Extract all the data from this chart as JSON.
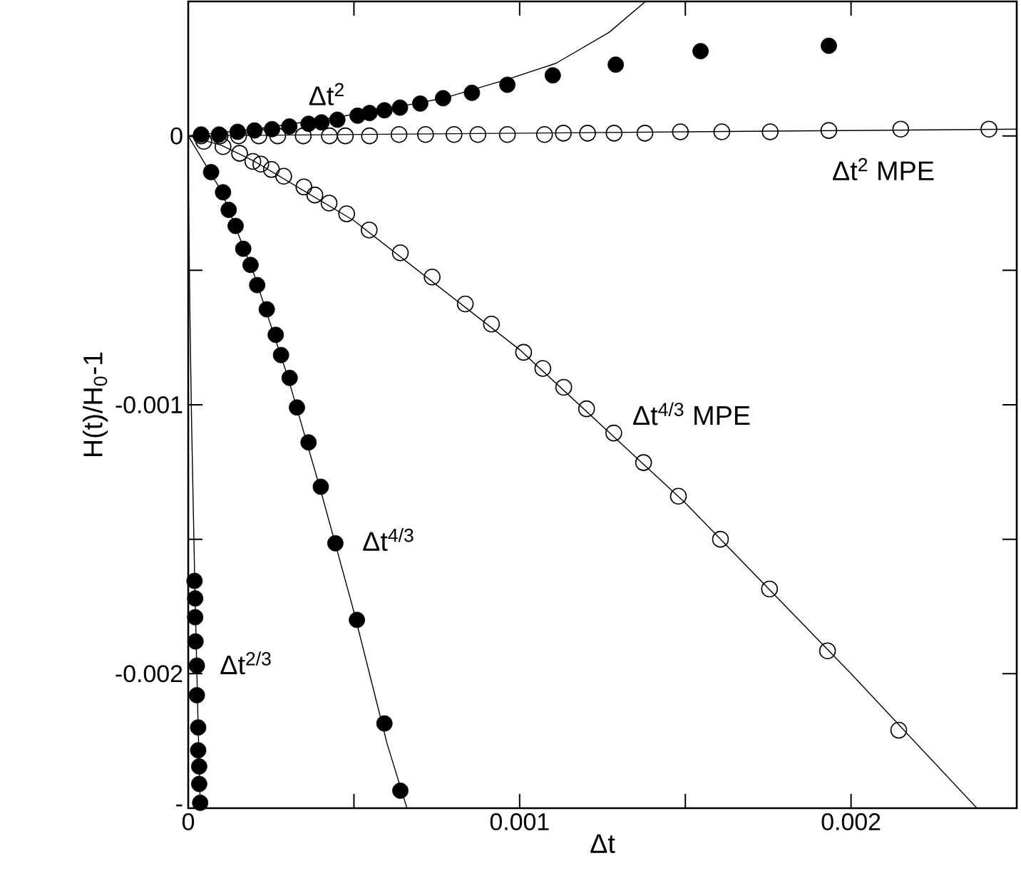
{
  "chart_data": {
    "type": "scatter",
    "xlabel": "Δt",
    "ylabel": "H(t)/H$_{0}$-1",
    "xlim": [
      0,
      0.0025
    ],
    "ylim": [
      -0.0025,
      0.0005
    ],
    "xticks": [
      0,
      {
        "value": 0.0005,
        "label": null
      },
      0.001,
      {
        "value": 0.0015,
        "label": null
      },
      0.002
    ],
    "yticks": [
      0,
      {
        "value": -0.0005,
        "label": null
      },
      -0.001,
      {
        "value": -0.0015,
        "label": null
      },
      -0.002,
      {
        "value": -0.0025,
        "label": "-"
      }
    ],
    "series": [
      {
        "marker": "circle",
        "color": "#000000",
        "x": [
          3.9e-05,
          9.3e-05,
          0.000149,
          0.0002,
          0.000253,
          0.000305,
          0.000363,
          0.000402,
          0.00045,
          0.000511,
          0.000547,
          0.000592,
          0.000639,
          0.0007,
          0.000769,
          0.000856,
          0.000963,
          0.0011,
          0.00129,
          0.001546,
          0.001933
        ],
        "values": [
          5e-06,
          5e-06,
          1.5e-05,
          2e-05,
          2.5e-05,
          3.5e-05,
          4.5e-05,
          5e-05,
          6e-05,
          7.5e-05,
          8.5e-05,
          9.5e-05,
          0.000105,
          0.00012,
          0.00014,
          0.00016,
          0.00019,
          0.000225,
          0.000265,
          0.000315,
          0.000335
        ]
      },
      {
        "type": "line",
        "marker": "none",
        "color": "#000000",
        "x": [
          0,
          0.0002,
          0.0004,
          0.0006,
          0.00077,
          0.000963,
          0.00111,
          0.00127,
          0.00138
        ],
        "values": [
          0,
          2.5e-05,
          6e-05,
          0.0001,
          0.00014,
          0.00021,
          0.00027,
          0.000385,
          0.0005
        ]
      },
      {
        "marker": "circle_open",
        "color": "#000000",
        "x": [
          3.9e-05,
          9.6e-05,
          0.000152,
          0.000213,
          0.00027,
          0.000347,
          0.000426,
          0.000474,
          0.000547,
          0.000636,
          0.000716,
          0.000802,
          0.000874,
          0.000963,
          0.001075,
          0.001132,
          0.001205,
          0.001285,
          0.001378,
          0.001485,
          0.00161,
          0.001756,
          0.001933,
          0.00215,
          0.002416
        ],
        "values": [
          0,
          0,
          0,
          0,
          0,
          0,
          0,
          0,
          0,
          5e-06,
          5e-06,
          5e-06,
          5e-06,
          5e-06,
          5e-06,
          1e-05,
          1e-05,
          1e-05,
          1e-05,
          1.5e-05,
          1.5e-05,
          1.5e-05,
          2e-05,
          2.5e-05,
          2.5e-05
        ]
      },
      {
        "type": "line",
        "marker": "none",
        "color": "#000000",
        "x": [
          0,
          0.0025
        ],
        "values": [
          0,
          2.5e-05
        ]
      },
      {
        "marker": "circle_open",
        "color": "#000000",
        "x": [
          4.7e-05,
          0.000105,
          0.000155,
          0.000195,
          0.000219,
          0.000251,
          0.000288,
          0.000349,
          0.000382,
          0.000425,
          0.000478,
          0.000546,
          0.00064,
          0.000736,
          0.000836,
          0.000915,
          0.001012,
          0.00107,
          0.001133,
          0.001202,
          0.001284,
          0.001374,
          0.001479,
          0.001606,
          0.001754,
          0.001929,
          0.002144
        ],
        "values": [
          -2e-05,
          -4e-05,
          -6.5e-05,
          -9.5e-05,
          -0.000105,
          -0.000125,
          -0.00015,
          -0.00019,
          -0.00022,
          -0.00025,
          -0.00029,
          -0.00035,
          -0.000435,
          -0.000525,
          -0.000625,
          -0.0007,
          -0.000805,
          -0.000865,
          -0.000935,
          -0.001015,
          -0.001105,
          -0.001215,
          -0.00134,
          -0.0015,
          -0.001685,
          -0.001915,
          -0.00221
        ]
      },
      {
        "type": "line",
        "marker": "none",
        "color": "#000000",
        "x": [
          0,
          0.0001,
          0.0002,
          0.0005,
          0.001,
          0.0015,
          0.002,
          0.00238
        ],
        "values": [
          0,
          -3.5e-05,
          -9.5e-05,
          -0.000315,
          -0.000795,
          -0.001365,
          -0.002,
          -0.0025
        ]
      },
      {
        "marker": "circle",
        "color": "#000000",
        "x": [
          6.9e-05,
          0.000105,
          0.000122,
          0.000143,
          0.000166,
          0.000188,
          0.000208,
          0.000237,
          0.000264,
          0.00028,
          0.000306,
          0.000328,
          0.000363,
          0.0004,
          0.000444,
          0.000509,
          0.000592,
          0.00064
        ],
        "values": [
          -0.000135,
          -0.00021,
          -0.000275,
          -0.000335,
          -0.00042,
          -0.00048,
          -0.000555,
          -0.000645,
          -0.00074,
          -0.000815,
          -0.0009,
          -0.00101,
          -0.00114,
          -0.001305,
          -0.001515,
          -0.0018,
          -0.002185,
          -0.002435
        ]
      },
      {
        "type": "line",
        "marker": "none",
        "color": "#000000",
        "x": [
          0,
          0.0001,
          0.0002,
          0.0003,
          0.0004,
          0.0005,
          0.0006,
          0.00066
        ],
        "values": [
          0,
          -0.000205,
          -0.00052,
          -0.000895,
          -0.00132,
          -0.00177,
          -0.00226,
          -0.0025
        ]
      },
      {
        "marker": "circle",
        "color": "#000000",
        "x": [
          1.9e-05,
          2.1e-05,
          2.1e-05,
          2.2e-05,
          2.6e-05,
          2.6e-05,
          3e-05,
          3e-05,
          3.3e-05,
          3.3e-05,
          3.6e-05
        ],
        "values": [
          -0.001655,
          -0.00172,
          -0.00179,
          -0.00188,
          -0.00197,
          -0.00208,
          -0.0022,
          -0.002285,
          -0.002345,
          -0.00241,
          -0.00248
        ]
      },
      {
        "type": "line",
        "marker": "none",
        "color": "#000000",
        "x": [
          0,
          1e-06,
          5e-06,
          1e-05,
          2e-05,
          3e-05,
          3.65e-05
        ],
        "values": [
          0,
          -0.00023,
          -0.000665,
          -0.00106,
          -0.00168,
          -0.0022,
          -0.0025
        ]
      }
    ],
    "annotations": [
      "Δt$^{2}$",
      "Δt$^{2}$ MPE",
      "Δt$^{4/3}$ MPE",
      "Δt$^{4/3}$",
      "Δt$^{2/3}$"
    ]
  }
}
